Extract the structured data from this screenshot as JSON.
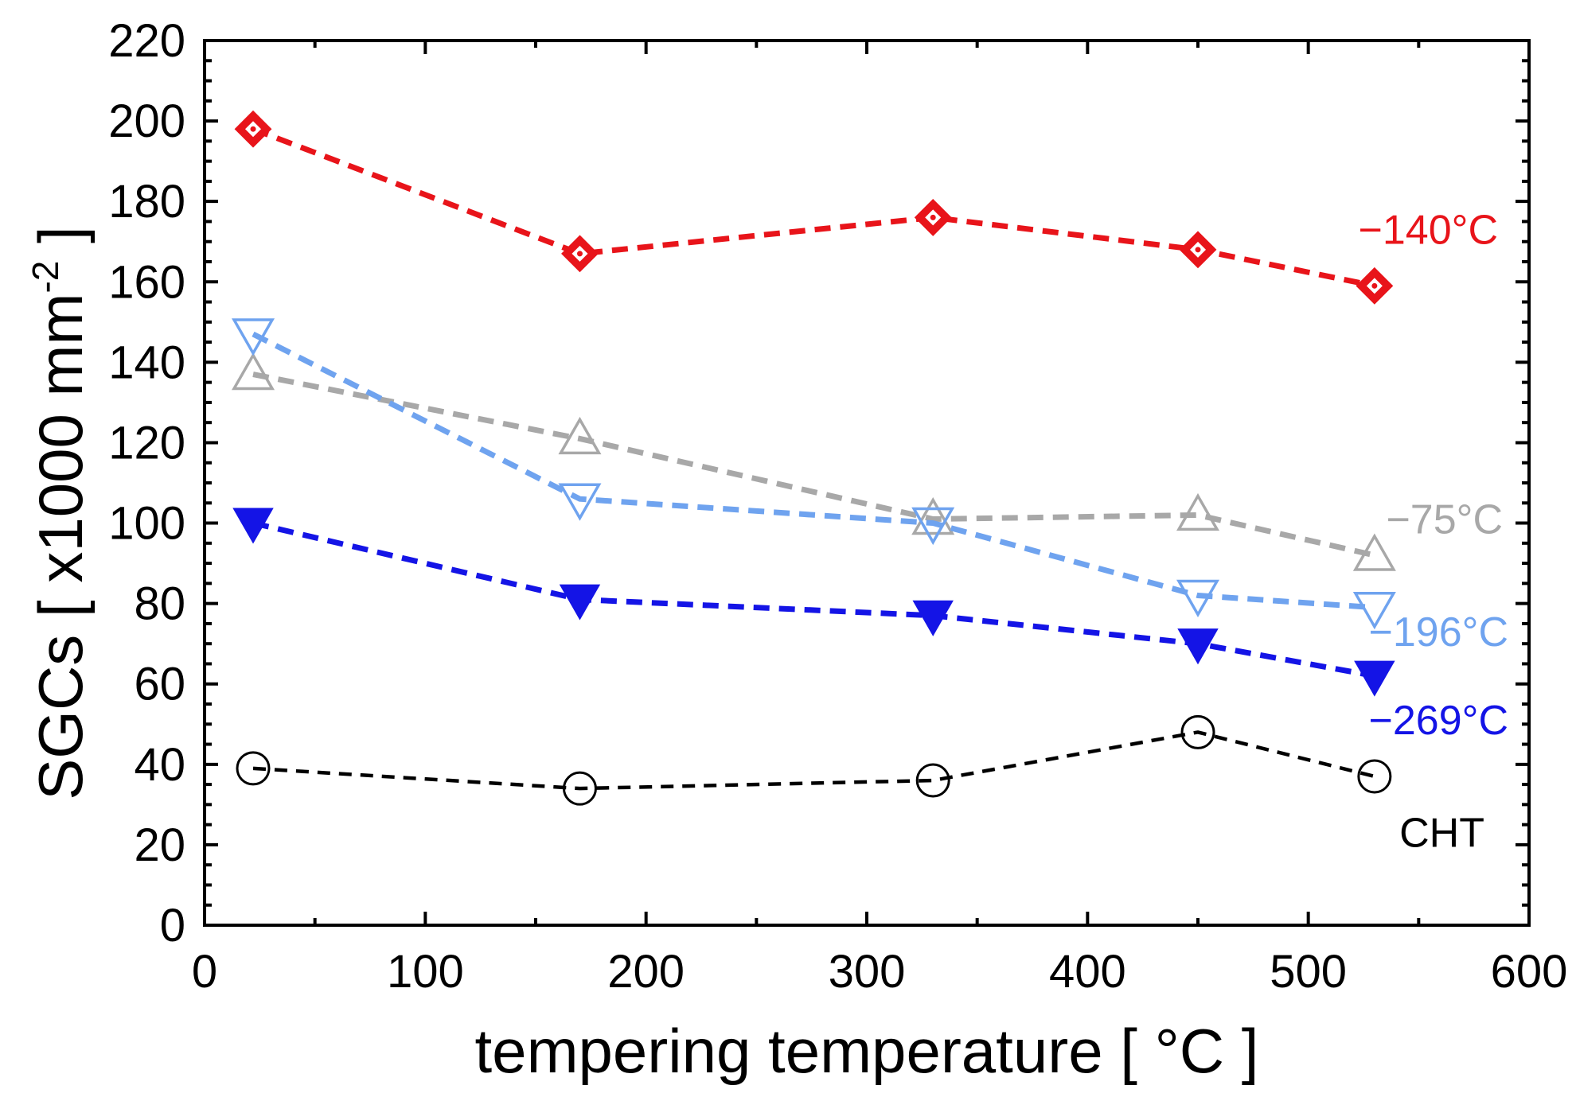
{
  "chart_data": {
    "type": "line",
    "title": "",
    "xlabel": "tempering temperature  [ °C ]",
    "ylabel": "SGCs   [ x1000 mm",
    "ylabel_superscript": "-2",
    "ylabel_close": " ]",
    "xlim": [
      0,
      600
    ],
    "ylim": [
      0,
      220
    ],
    "x_ticks": [
      0,
      100,
      200,
      300,
      400,
      500,
      600
    ],
    "x_tick_labels": [
      "0",
      "100",
      "200",
      "300",
      "400",
      "500",
      "600"
    ],
    "y_ticks": [
      0,
      20,
      40,
      60,
      80,
      100,
      120,
      140,
      160,
      180,
      200,
      220
    ],
    "y_tick_labels": [
      "0",
      "20",
      "40",
      "60",
      "80",
      "100",
      "120",
      "140",
      "160",
      "180",
      "200",
      "220"
    ],
    "grid": false,
    "line_style": "dashed",
    "series": [
      {
        "name": "−140°C",
        "marker": "diamond-dot",
        "color": "#e8141a",
        "x": [
          22,
          170,
          330,
          450,
          530
        ],
        "values": [
          198,
          167,
          176,
          168,
          159
        ]
      },
      {
        "name": "−75°C",
        "marker": "triangle-up-open",
        "color": "#a8a8a8",
        "x": [
          22,
          170,
          330,
          450,
          530
        ],
        "values": [
          137,
          121,
          101,
          102,
          92
        ]
      },
      {
        "name": "−196°C",
        "marker": "triangle-down-open",
        "color": "#6fa3ef",
        "x": [
          22,
          170,
          330,
          450,
          530
        ],
        "values": [
          147,
          106,
          100,
          82,
          79
        ]
      },
      {
        "name": "−269°C",
        "marker": "triangle-down-filled",
        "color": "#1414e6",
        "x": [
          22,
          170,
          330,
          450,
          530
        ],
        "values": [
          100,
          81,
          77,
          70,
          62
        ]
      },
      {
        "name": "CHT",
        "marker": "circle-open",
        "color": "#000000",
        "x": [
          22,
          170,
          330,
          450,
          530
        ],
        "values": [
          39,
          34,
          36,
          48,
          37
        ]
      }
    ]
  }
}
